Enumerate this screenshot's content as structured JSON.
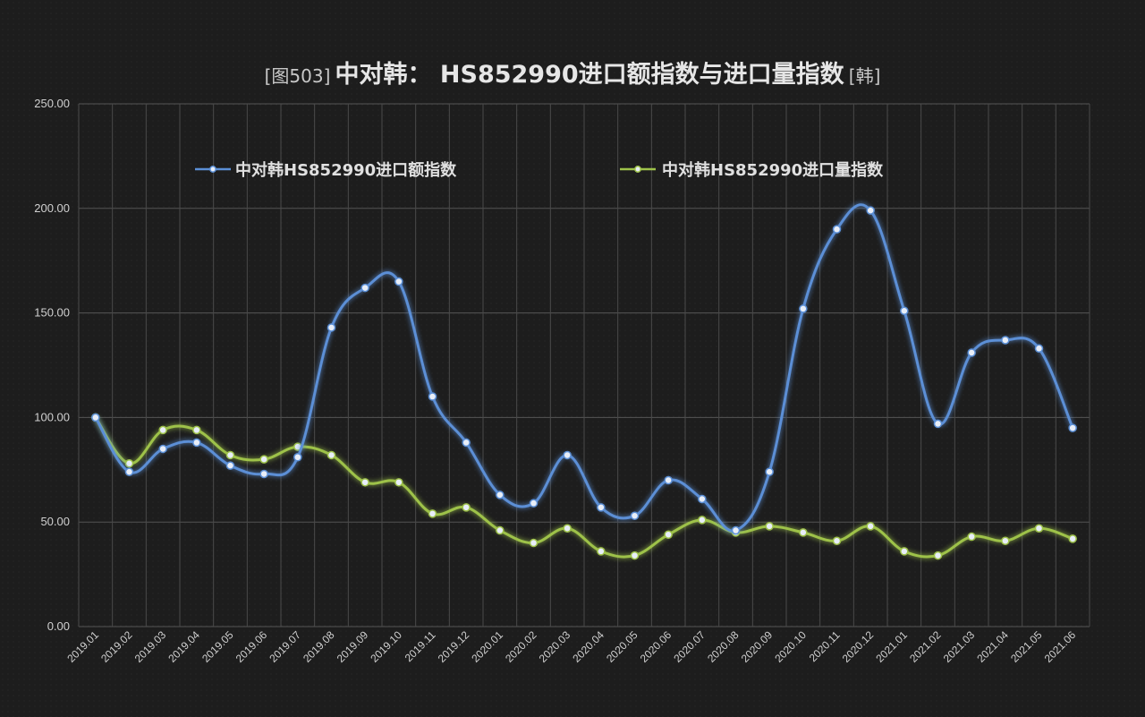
{
  "chart_data": {
    "type": "line",
    "title_prefix": "[图503]",
    "title": "中对韩： HS852990进口额指数与进口量指数",
    "title_suffix": "[韩]",
    "xlabel": "",
    "ylabel": "",
    "ylim": [
      0,
      250
    ],
    "yticks": [
      "0.00",
      "50.00",
      "100.00",
      "150.00",
      "200.00",
      "250.00"
    ],
    "grid": true,
    "legend_position": "top",
    "categories": [
      "2019.01",
      "2019.02",
      "2019.03",
      "2019.04",
      "2019.05",
      "2019.06",
      "2019.07",
      "2019.08",
      "2019.09",
      "2019.10",
      "2019.11",
      "2019.12",
      "2020.01",
      "2020.02",
      "2020.03",
      "2020.04",
      "2020.05",
      "2020.06",
      "2020.07",
      "2020.08",
      "2020.09",
      "2020.10",
      "2020.11",
      "2020.12",
      "2021.01",
      "2021.02",
      "2021.03",
      "2021.04",
      "2021.05",
      "2021.06"
    ],
    "series": [
      {
        "name": "中对韩HS852990进口额指数",
        "color": "#5b8fd6",
        "values": [
          100,
          74,
          85,
          88,
          77,
          73,
          81,
          143,
          162,
          165,
          110,
          88,
          63,
          59,
          82,
          57,
          53,
          70,
          61,
          46,
          74,
          152,
          190,
          199,
          151,
          97,
          131,
          137,
          133,
          95
        ]
      },
      {
        "name": "中对韩HS852990进口量指数",
        "color": "#9ec24a",
        "values": [
          100,
          78,
          94,
          94,
          82,
          80,
          86,
          82,
          69,
          69,
          54,
          57,
          46,
          40,
          47,
          36,
          34,
          44,
          51,
          45,
          48,
          45,
          41,
          48,
          36,
          34,
          43,
          41,
          47,
          42
        ]
      }
    ]
  }
}
